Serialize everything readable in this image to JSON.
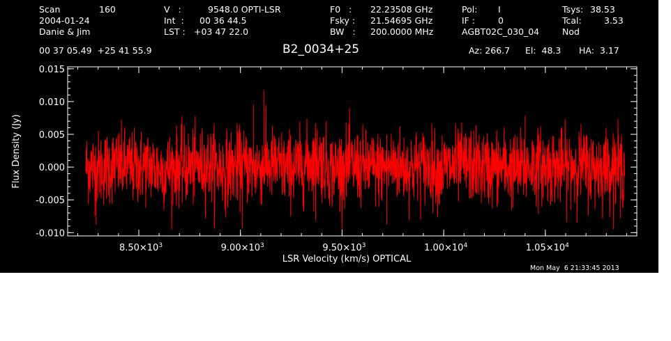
{
  "header": {
    "scan_label": "Scan",
    "scan_value": "160",
    "date": "2004-01-24",
    "observers": "Danie & Jim",
    "v_label": "V   :",
    "v_value": "9548.0 OPTI-LSR",
    "int_label": "Int  :",
    "int_value": "00 36 44.5",
    "lst_label": "LST :",
    "lst_value": "+03 47 22.0",
    "f0_label": "F0   :",
    "f0_value": "22.23508 GHz",
    "fsky_label": "Fsky :",
    "fsky_value": "21.54695 GHz",
    "bw_label": "BW   :",
    "bw_value": "200.0000 MHz",
    "pol_label": "Pol:",
    "pol_value": "I",
    "if_label": "IF :",
    "if_value": "0",
    "project": "AGBT02C_030_04",
    "tsys_label": "Tsys:",
    "tsys_value": "38.53",
    "tcal_label": "Tcal:",
    "tcal_value": "3.53",
    "mode": "Nod",
    "coords": "00 37 05.49  +25 41 55.9",
    "object": "B2_0034+25",
    "az": "Az: 266.7",
    "el": "El:  48.3",
    "ha": "HA:  3.17",
    "timestamp": "Mon May  6 21:33:45 2013"
  },
  "colors": {
    "background": "#000000",
    "axes": "#ffffff",
    "trace": "#ff0000"
  },
  "chart_data": {
    "type": "line",
    "xlabel": "LSR Velocity (km/s) OPTICAL",
    "ylabel": "Flux Density (Jy)",
    "xlim": [
      8150,
      10950
    ],
    "ylim": [
      -0.0105,
      0.0153
    ],
    "xticks": [
      {
        "value": 8500,
        "mantissa": "8.50",
        "exp": "3"
      },
      {
        "value": 9000,
        "mantissa": "9.00",
        "exp": "3"
      },
      {
        "value": 9500,
        "mantissa": "9.50",
        "exp": "3"
      },
      {
        "value": 10000,
        "mantissa": "1.00",
        "exp": "4"
      },
      {
        "value": 10500,
        "mantissa": "1.05",
        "exp": "4"
      }
    ],
    "yticks": [
      {
        "value": 0.015,
        "label": "0.015"
      },
      {
        "value": 0.01,
        "label": "0.010"
      },
      {
        "value": 0.005,
        "label": "0.005"
      },
      {
        "value": 0.0,
        "label": "0.000"
      },
      {
        "value": -0.005,
        "label": "-0.005"
      },
      {
        "value": -0.01,
        "label": "-0.010"
      }
    ],
    "series": [
      {
        "x_start": 8240,
        "x_end": 10890,
        "noise_rms": 0.0028,
        "values_sampled": [
          0.001,
          -0.002,
          0.003,
          -0.001,
          0.002,
          -0.004,
          0.001,
          0.0,
          0.003,
          -0.003,
          0.002,
          -0.001,
          0.004,
          -0.002,
          0.001,
          0.012,
          -0.003,
          0.002,
          0.0,
          -0.002,
          0.003,
          -0.001,
          0.002,
          -0.003,
          0.001,
          0.003,
          -0.002,
          0.001,
          -0.004,
          0.002,
          0.001,
          -0.001,
          0.003,
          -0.002,
          0.002,
          -0.001
        ],
        "spikes": [
          {
            "x": 9115,
            "y": 0.0117
          },
          {
            "x": 9065,
            "y": 0.0095
          },
          {
            "x": 9010,
            "y": -0.0093
          },
          {
            "x": 8290,
            "y": -0.0088
          },
          {
            "x": 9370,
            "y": -0.0081
          },
          {
            "x": 9720,
            "y": -0.0087
          },
          {
            "x": 10870,
            "y": -0.0078
          },
          {
            "x": 10400,
            "y": 0.0078
          }
        ]
      }
    ]
  }
}
